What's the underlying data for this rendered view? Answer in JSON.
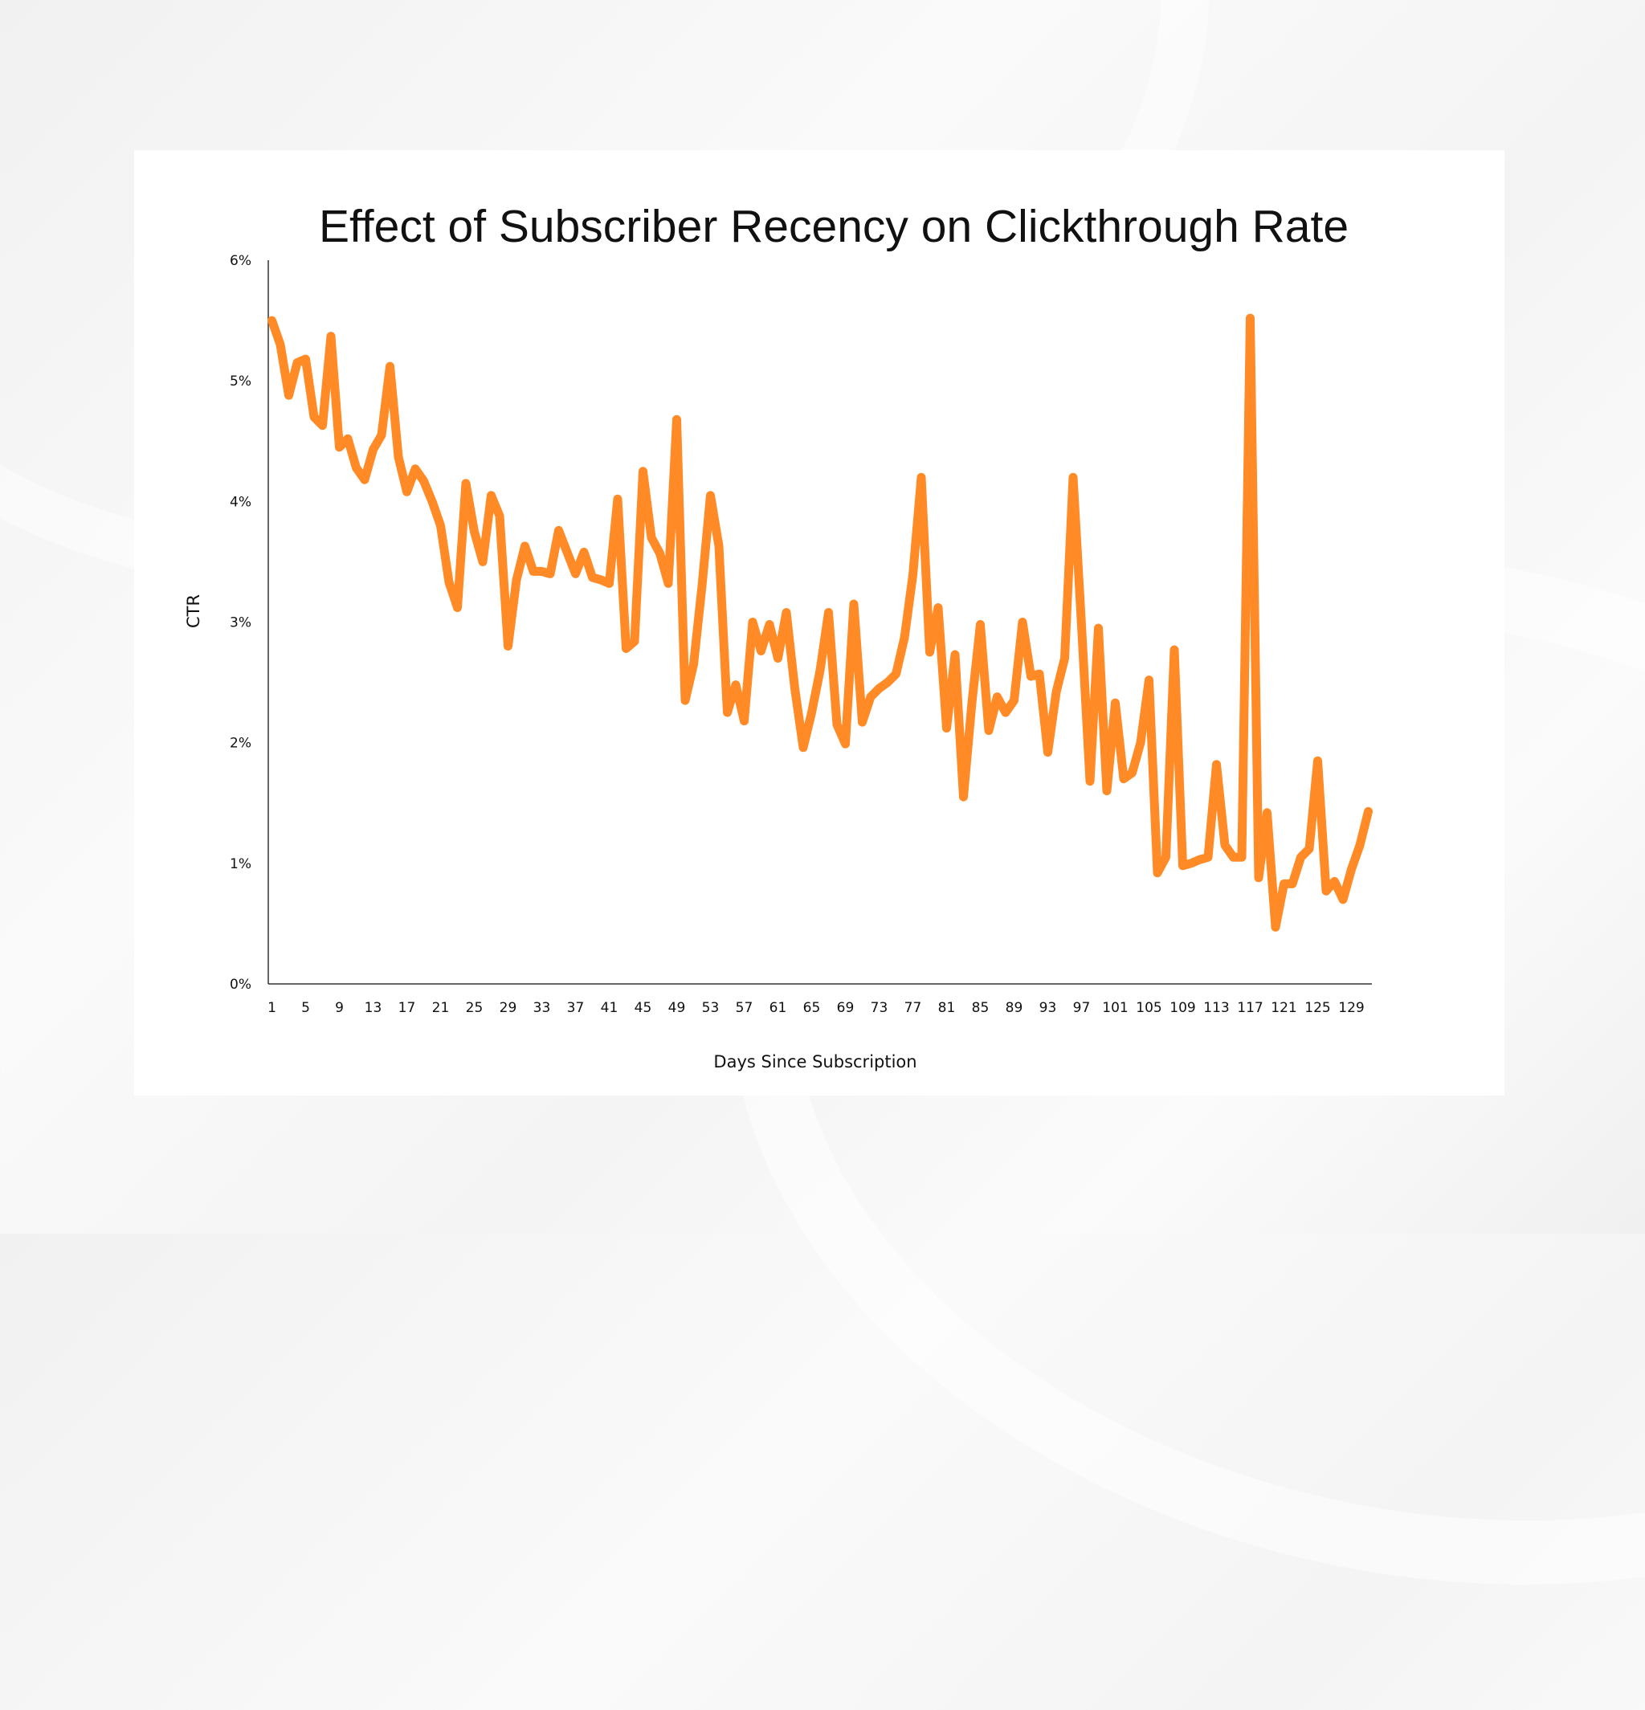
{
  "colors": {
    "series": "#ff8a26",
    "axis": "#333333",
    "card": "#ffffff"
  },
  "chart_data": {
    "type": "line",
    "title": "Effect of Subscriber Recency on Clickthrough Rate",
    "xlabel": "Days Since Subscription",
    "ylabel": "CTR",
    "ylim": [
      0,
      6
    ],
    "grid": false,
    "y_ticks": [
      {
        "value": 0,
        "label": "0%"
      },
      {
        "value": 1,
        "label": "1%"
      },
      {
        "value": 2,
        "label": "2%"
      },
      {
        "value": 3,
        "label": "3%"
      },
      {
        "value": 4,
        "label": "4%"
      },
      {
        "value": 5,
        "label": "5%"
      },
      {
        "value": 6,
        "label": "6%"
      }
    ],
    "x_tick_labels": [
      "1",
      "5",
      "9",
      "13",
      "17",
      "21",
      "25",
      "29",
      "33",
      "37",
      "41",
      "45",
      "49",
      "53",
      "57",
      "61",
      "65",
      "69",
      "73",
      "77",
      "81",
      "85",
      "89",
      "93",
      "97",
      "101",
      "105",
      "109",
      "113",
      "117",
      "121",
      "125",
      "129"
    ],
    "x_first_day": 1,
    "series": [
      {
        "name": "CTR",
        "unit": "%",
        "values": [
          5.5,
          5.3,
          4.88,
          5.15,
          5.18,
          4.7,
          4.63,
          5.37,
          4.45,
          4.52,
          4.28,
          4.18,
          4.43,
          4.55,
          5.12,
          4.37,
          4.08,
          4.27,
          4.17,
          4.0,
          3.8,
          3.33,
          3.12,
          4.15,
          3.75,
          3.5,
          4.05,
          3.88,
          2.8,
          3.35,
          3.63,
          3.42,
          3.42,
          3.4,
          3.76,
          3.58,
          3.4,
          3.58,
          3.37,
          3.35,
          3.32,
          4.02,
          2.78,
          2.84,
          4.25,
          3.7,
          3.57,
          3.32,
          4.68,
          2.35,
          2.65,
          3.3,
          4.05,
          3.63,
          2.25,
          2.48,
          2.18,
          3.0,
          2.76,
          2.98,
          2.7,
          3.08,
          2.45,
          1.96,
          2.25,
          2.6,
          3.08,
          2.15,
          1.99,
          3.15,
          2.17,
          2.38,
          2.45,
          2.5,
          2.57,
          2.87,
          3.39,
          4.2,
          2.75,
          3.12,
          2.12,
          2.73,
          1.55,
          2.33,
          2.98,
          2.1,
          2.38,
          2.25,
          2.35,
          3.0,
          2.55,
          2.57,
          1.92,
          2.42,
          2.7,
          4.2,
          2.97,
          1.68,
          2.95,
          1.6,
          2.33,
          1.7,
          1.75,
          2.0,
          2.52,
          0.92,
          1.05,
          2.77,
          0.98,
          1.0,
          1.03,
          1.05,
          1.82,
          1.15,
          1.05,
          1.05,
          5.52,
          0.88,
          1.42,
          0.47,
          0.83,
          0.83,
          1.05,
          1.12,
          1.85,
          0.77,
          0.85,
          0.7,
          0.95,
          1.15,
          1.43
        ]
      }
    ]
  }
}
